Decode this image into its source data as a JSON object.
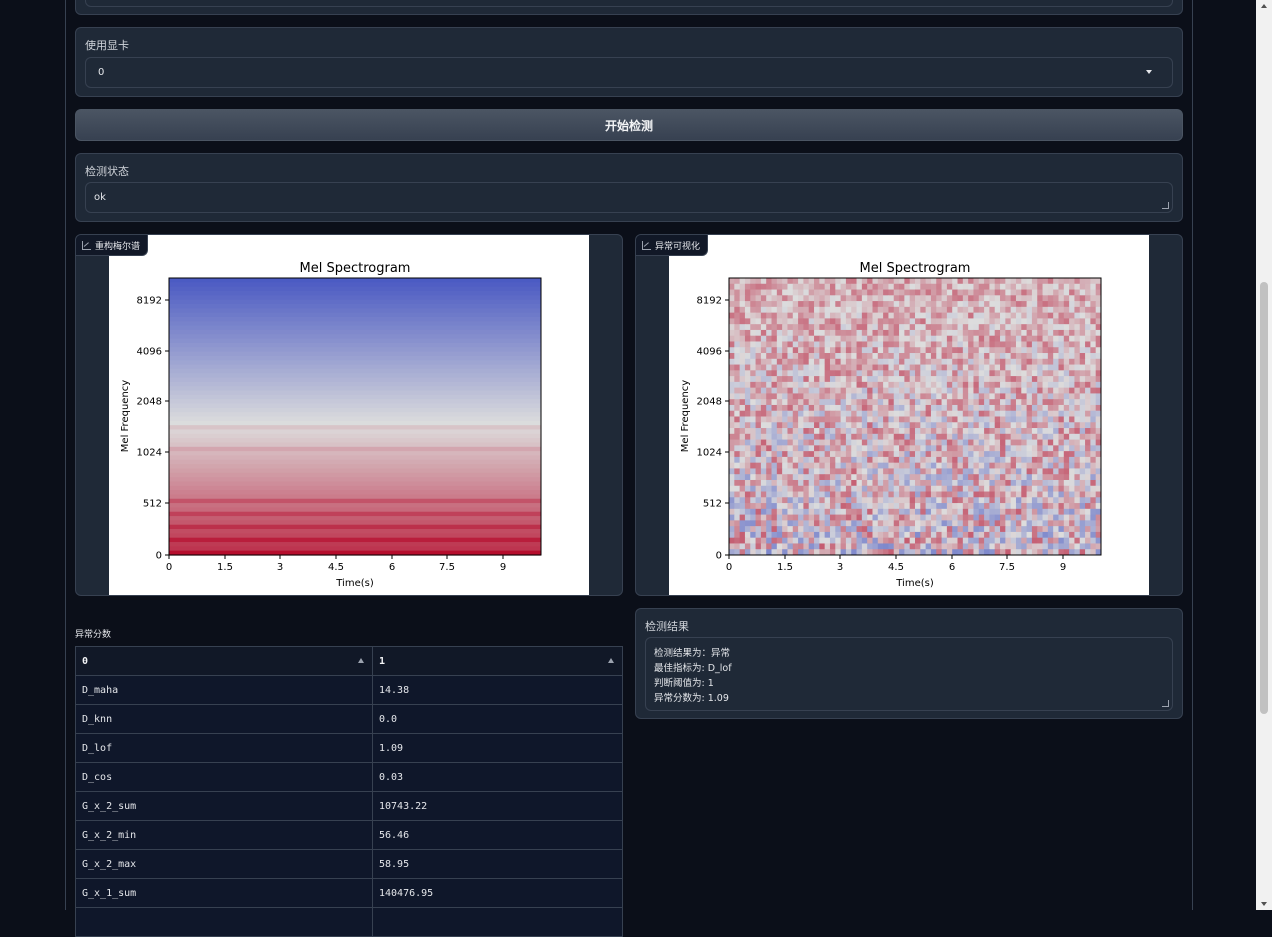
{
  "top_dropdown": {
    "label": "",
    "value": ""
  },
  "gpu": {
    "label": "使用显卡",
    "value": "0"
  },
  "start_button": {
    "label": "开始检测"
  },
  "status": {
    "label": "检测状态",
    "value": "ok"
  },
  "image_left": {
    "tag": "重构梅尔谱",
    "plot": {
      "title": "Mel Spectrogram",
      "xlabel": "Time(s)",
      "ylabel": "Mel Frequency",
      "xticks": [
        "0",
        "1.5",
        "3",
        "4.5",
        "6",
        "7.5",
        "9"
      ],
      "yticks": [
        "0",
        "512",
        "1024",
        "2048",
        "4096",
        "8192"
      ]
    }
  },
  "image_right": {
    "tag": "异常可视化",
    "plot": {
      "title": "Mel Spectrogram",
      "xlabel": "Time(s)",
      "ylabel": "Mel Frequency",
      "xticks": [
        "0",
        "1.5",
        "3",
        "4.5",
        "6",
        "7.5",
        "9"
      ],
      "yticks": [
        "0",
        "512",
        "1024",
        "2048",
        "4096",
        "8192"
      ]
    }
  },
  "scores_table": {
    "label": "异常分数",
    "headers": [
      "0",
      "1"
    ],
    "rows": [
      [
        "D_maha",
        "14.38"
      ],
      [
        "D_knn",
        "0.0"
      ],
      [
        "D_lof",
        "1.09"
      ],
      [
        "D_cos",
        "0.03"
      ],
      [
        "G_x_2_sum",
        "10743.22"
      ],
      [
        "G_x_2_min",
        "56.46"
      ],
      [
        "G_x_2_max",
        "58.95"
      ],
      [
        "G_x_1_sum",
        "140476.95"
      ]
    ]
  },
  "result": {
    "label": "检测结果",
    "lines": [
      "检测结果为：异常",
      "最佳指标为: D_lof",
      "判断阈值为: 1",
      "异常分数为: 1.09"
    ]
  },
  "colors": {
    "background": "#0b0f19",
    "panel": "#1f2937",
    "border": "#374151",
    "button": "#4b5563"
  }
}
